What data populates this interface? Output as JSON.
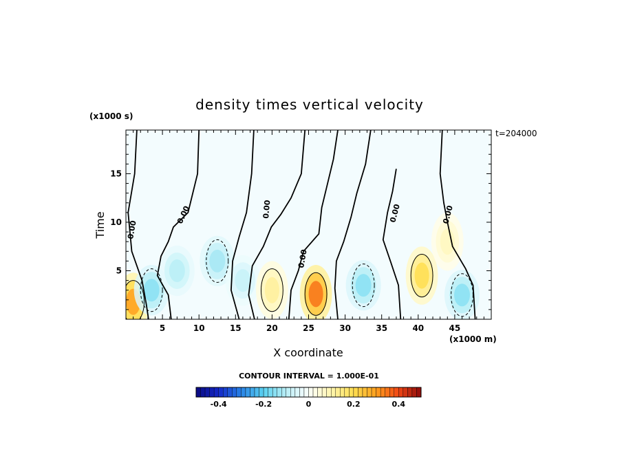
{
  "chart_data": {
    "type": "heatmap",
    "title": "density times vertical velocity",
    "xlabel": "X coordinate",
    "ylabel": "Time",
    "x_unit_label": "(x1000 m)",
    "y_unit_label": "(x1000 s)",
    "time_stamp": "t=204000",
    "xlim": [
      0,
      50
    ],
    "ylim": [
      0,
      19.5
    ],
    "x_ticks": [
      5,
      10,
      15,
      20,
      25,
      30,
      35,
      40,
      45
    ],
    "y_ticks": [
      5,
      10,
      15
    ],
    "contour_interval_text": "CONTOUR INTERVAL = 1.000E-01",
    "contour_label": "0.00",
    "colorbar": {
      "min": -0.5,
      "max": 0.5,
      "ticks": [
        -0.4,
        -0.2,
        0,
        0.2,
        0.4
      ],
      "tick_labels": [
        "-0.4",
        "-0.2",
        "0",
        "0.2",
        "0.4"
      ]
    },
    "features": [
      {
        "x": 1.0,
        "y": 1.8,
        "value": 0.3
      },
      {
        "x": 3.5,
        "y": 3.0,
        "value": -0.15
      },
      {
        "x": 7.0,
        "y": 5.0,
        "value": -0.1
      },
      {
        "x": 12.5,
        "y": 6.0,
        "value": -0.12
      },
      {
        "x": 16.0,
        "y": 4.0,
        "value": -0.08
      },
      {
        "x": 20.0,
        "y": 3.0,
        "value": 0.12
      },
      {
        "x": 26.0,
        "y": 2.6,
        "value": 0.35
      },
      {
        "x": 32.5,
        "y": 3.5,
        "value": -0.15
      },
      {
        "x": 40.5,
        "y": 4.5,
        "value": 0.2
      },
      {
        "x": 44.0,
        "y": 8.0,
        "value": 0.08
      },
      {
        "x": 46.0,
        "y": 2.5,
        "value": -0.15
      }
    ]
  }
}
